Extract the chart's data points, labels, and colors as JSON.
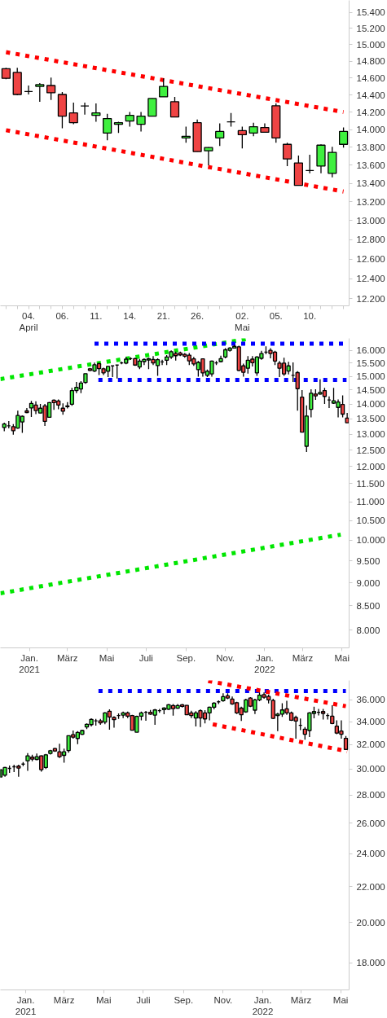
{
  "chart_data": [
    {
      "type": "candlestick",
      "log": true,
      "categories": [
        null,
        null,
        "04.\nApril",
        null,
        null,
        "06.",
        null,
        null,
        "11.",
        null,
        null,
        "14.",
        null,
        null,
        "21.",
        null,
        null,
        "26.",
        null,
        null,
        null,
        "02.\nMai",
        null,
        null,
        "05.",
        null,
        null,
        "10.",
        null,
        null,
        null
      ],
      "ohlc": [
        [
          14710,
          14720,
          14585,
          14595
        ],
        [
          14665,
          14720,
          14395,
          14405
        ],
        [
          14440,
          14510,
          14405,
          14440
        ],
        [
          14500,
          14540,
          14320,
          14520
        ],
        [
          14510,
          14605,
          14340,
          14425
        ],
        [
          14405,
          14433,
          14014,
          14153
        ],
        [
          14190,
          14310,
          14060,
          14078
        ],
        [
          14270,
          14310,
          14170,
          14270
        ],
        [
          14162,
          14300,
          14088,
          14190
        ],
        [
          13960,
          14180,
          13878,
          14125
        ],
        [
          14060,
          14088,
          13960,
          14078
        ],
        [
          14097,
          14200,
          14032,
          14162
        ],
        [
          14060,
          14200,
          13978,
          14153
        ],
        [
          14153,
          14360,
          14150,
          14358
        ],
        [
          14377,
          14595,
          14375,
          14500
        ],
        [
          14320,
          14377,
          14140,
          14144
        ],
        [
          13905,
          14032,
          13850,
          13923
        ],
        [
          14078,
          14115,
          13751,
          13751
        ],
        [
          13760,
          13800,
          13598,
          13796
        ],
        [
          13905,
          14069,
          13814,
          13978
        ],
        [
          14088,
          14190,
          14032,
          14088
        ],
        [
          13987,
          14032,
          13787,
          13941
        ],
        [
          13960,
          14078,
          13923,
          14032
        ],
        [
          14023,
          14069,
          13965,
          13969
        ],
        [
          14273,
          14300,
          13850,
          13905
        ],
        [
          13832,
          13850,
          13590,
          13669
        ],
        [
          13625,
          13706,
          13378,
          13378
        ],
        [
          13540,
          13715,
          13510,
          13540
        ],
        [
          13590,
          13832,
          13510,
          13823
        ],
        [
          13510,
          13805,
          13466,
          13742
        ],
        [
          13832,
          14023,
          13796,
          13978
        ]
      ],
      "colors": [
        "#ef4444",
        "#ef4444",
        "#000000",
        "#3ff03f",
        "#ef4444",
        "#ef4444",
        "#ef4444",
        "#000000",
        "#3ff03f",
        "#3ff03f",
        "#3ff03f",
        "#3ff03f",
        "#3ff03f",
        "#3ff03f",
        "#3ff03f",
        "#ef4444",
        "#3ff03f",
        "#ef4444",
        "#3ff03f",
        "#3ff03f",
        "#000000",
        "#ef4444",
        "#3ff03f",
        "#ef4444",
        "#ef4444",
        "#ef4444",
        "#ef4444",
        "#000000",
        "#3ff03f",
        "#3ff03f",
        "#3ff03f"
      ],
      "series": [
        {
          "type": "line",
          "color": "#ff0000",
          "line_style": "dotted",
          "values": [
            14909,
            null,
            null,
            null,
            null,
            null,
            null,
            null,
            null,
            null,
            null,
            null,
            null,
            null,
            null,
            null,
            null,
            null,
            null,
            null,
            null,
            null,
            null,
            null,
            null,
            null,
            null,
            null,
            null,
            null,
            14200
          ]
        },
        {
          "type": "line",
          "color": "#ff0000",
          "line_style": "dotted",
          "values": [
            13992,
            null,
            null,
            null,
            null,
            null,
            null,
            null,
            null,
            null,
            null,
            null,
            null,
            null,
            null,
            null,
            null,
            null,
            null,
            null,
            null,
            null,
            null,
            null,
            null,
            null,
            null,
            null,
            null,
            null,
            13311
          ]
        }
      ],
      "ylim": [
        12130,
        15550
      ],
      "yticks": [
        {
          "value": 12200,
          "label": "12.200"
        },
        {
          "value": 12400,
          "label": "12.400"
        },
        {
          "value": 12600,
          "label": "12.600"
        },
        {
          "value": 12800,
          "label": "12.800"
        },
        {
          "value": 13000,
          "label": "13.000"
        },
        {
          "value": 13200,
          "label": "13.200"
        },
        {
          "value": 13400,
          "label": "13.400"
        },
        {
          "value": 13600,
          "label": "13.600"
        },
        {
          "value": 13800,
          "label": "13.800"
        },
        {
          "value": 14000,
          "label": "14.000"
        },
        {
          "value": 14200,
          "label": "14.200"
        },
        {
          "value": 14400,
          "label": "14.400"
        },
        {
          "value": 14600,
          "label": "14.600"
        },
        {
          "value": 14800,
          "label": "14.800"
        },
        {
          "value": 15000,
          "label": "15.000"
        },
        {
          "value": 15200,
          "label": "15.200"
        },
        {
          "value": 15400,
          "label": "15.400"
        }
      ]
    },
    {
      "type": "candlestick",
      "log": true,
      "x": [
        "2020-11-23",
        "2020-11-30",
        "2020-12-07",
        "2020-12-14",
        "2020-12-21",
        "2020-12-28",
        "2021-01-04",
        "2021-01-11",
        "2021-01-18",
        "2021-01-25",
        "2021-02-01",
        "2021-02-08",
        "2021-02-15",
        "2021-02-22",
        "2021-03-01",
        "2021-03-08",
        "2021-03-15",
        "2021-03-22",
        "2021-03-29",
        "2021-04-05",
        "2021-04-12",
        "2021-04-19",
        "2021-04-26",
        "2021-05-03",
        "2021-05-10",
        "2021-05-17",
        "2021-05-24",
        "2021-05-31",
        "2021-06-07",
        "2021-06-14",
        "2021-06-21",
        "2021-06-28",
        "2021-07-05",
        "2021-07-12",
        "2021-07-19",
        "2021-07-26",
        "2021-08-02",
        "2021-08-09",
        "2021-08-16",
        "2021-08-23",
        "2021-08-30",
        "2021-09-06",
        "2021-09-13",
        "2021-09-20",
        "2021-09-27",
        "2021-10-04",
        "2021-10-11",
        "2021-10-18",
        "2021-10-25",
        "2021-11-01",
        "2021-11-08",
        "2021-11-15",
        "2021-11-22",
        "2021-11-29",
        "2021-12-06",
        "2021-12-13",
        "2021-12-20",
        "2021-12-27",
        "2022-01-03",
        "2022-01-10",
        "2022-01-17",
        "2022-01-24",
        "2022-01-31",
        "2022-02-07",
        "2022-02-14",
        "2022-02-21",
        "2022-02-28",
        "2022-03-07",
        "2022-03-14",
        "2022-03-21",
        "2022-03-28",
        "2022-04-04",
        "2022-04-11",
        "2022-04-18",
        "2022-04-25",
        "2022-05-02",
        "2022-05-09"
      ],
      "ohlc": [
        [
          13217,
          13375,
          13094,
          13330
        ],
        [
          13270,
          13428,
          13191,
          13270
        ],
        [
          13243,
          13330,
          12982,
          13112
        ],
        [
          13199,
          13781,
          13173,
          13617
        ],
        [
          13402,
          13617,
          13042,
          13590
        ],
        [
          13773,
          13872,
          13700,
          13718
        ],
        [
          13872,
          14114,
          13563,
          14030
        ],
        [
          13974,
          14105,
          13663,
          13781
        ],
        [
          13699,
          14011,
          13690,
          13863
        ],
        [
          13946,
          14011,
          13270,
          13420
        ],
        [
          13554,
          14077,
          13554,
          14058
        ],
        [
          14142,
          14170,
          13808,
          14058
        ],
        [
          14114,
          14170,
          13827,
          13974
        ],
        [
          13863,
          14030,
          13644,
          13762
        ],
        [
          13918,
          14077,
          13854,
          13946
        ],
        [
          14002,
          14580,
          13946,
          14484
        ],
        [
          14484,
          14795,
          14388,
          14600
        ],
        [
          14542,
          14824,
          14388,
          14754
        ],
        [
          14775,
          15105,
          14725,
          15102
        ],
        [
          15284,
          15315,
          15193,
          15223
        ],
        [
          15202,
          15519,
          15163,
          15437
        ],
        [
          15478,
          15519,
          15051,
          15293
        ],
        [
          15284,
          15325,
          15051,
          15132
        ],
        [
          15193,
          15396,
          14973,
          15376
        ],
        [
          15396,
          15396,
          14973,
          15396
        ],
        [
          15427,
          15427,
          14923,
          15427
        ],
        [
          15508,
          15560,
          15457,
          15508
        ],
        [
          15498,
          15739,
          15457,
          15654
        ],
        [
          15675,
          15726,
          15623,
          15675
        ],
        [
          15675,
          15706,
          15396,
          15427
        ],
        [
          15354,
          15664,
          15274,
          15582
        ],
        [
          15560,
          15685,
          15427,
          15644
        ],
        [
          15623,
          15706,
          15274,
          15675
        ],
        [
          15644,
          15769,
          15427,
          15508
        ],
        [
          15407,
          15685,
          15022,
          15633
        ],
        [
          15550,
          15633,
          15427,
          15550
        ],
        [
          15612,
          15811,
          15427,
          15739
        ],
        [
          15739,
          16000,
          15664,
          15946
        ],
        [
          15873,
          15946,
          15602,
          15789
        ],
        [
          15894,
          15946,
          15769,
          15820
        ],
        [
          15841,
          15894,
          15706,
          15769
        ],
        [
          15810,
          15894,
          15427,
          15585
        ],
        [
          15664,
          15739,
          15396,
          15470
        ],
        [
          15254,
          15582,
          14991,
          15529
        ],
        [
          15664,
          15685,
          14991,
          15132
        ],
        [
          15042,
          15254,
          14973,
          15193
        ],
        [
          15093,
          15602,
          14991,
          15582
        ],
        [
          15508,
          15582,
          15427,
          15508
        ],
        [
          15560,
          15789,
          15529,
          15675
        ],
        [
          15739,
          16087,
          15685,
          16021
        ],
        [
          16000,
          16129,
          15946,
          16087
        ],
        [
          16087,
          16215,
          16087,
          16160
        ],
        [
          16138,
          16182,
          15193,
          15223
        ],
        [
          15396,
          15478,
          14991,
          15152
        ],
        [
          15305,
          15769,
          15102,
          15612
        ],
        [
          15654,
          15769,
          15376,
          15519
        ],
        [
          15132,
          15769,
          15022,
          15739
        ],
        [
          15685,
          15978,
          15633,
          15873
        ],
        [
          15926,
          16160,
          15841,
          15926
        ],
        [
          16000,
          16087,
          15685,
          15873
        ],
        [
          15926,
          15978,
          15427,
          15581
        ],
        [
          15498,
          15582,
          14973,
          15305
        ],
        [
          15498,
          15706,
          15022,
          15092
        ],
        [
          15202,
          15550,
          15072,
          15396
        ],
        [
          15042,
          15529,
          14795,
          15042
        ],
        [
          15142,
          15193,
          13781,
          14551
        ],
        [
          14247,
          14503,
          13068,
          13068
        ],
        [
          12617,
          13965,
          12437,
          13599
        ],
        [
          13826,
          14532,
          13554,
          14388
        ],
        [
          14360,
          14532,
          14150,
          14293
        ],
        [
          14360,
          14893,
          14340,
          14417
        ],
        [
          14484,
          14580,
          14011,
          14275
        ],
        [
          14150,
          14275,
          13872,
          14150
        ],
        [
          14040,
          14580,
          14011,
          14123
        ],
        [
          13891,
          14170,
          13554,
          14077
        ],
        [
          13993,
          14312,
          13554,
          13663
        ],
        [
          13528,
          13702,
          13375,
          13375
        ]
      ],
      "colors": [
        "#3ff03f",
        "#000000",
        "#ef4444",
        "#3ff03f",
        "#3ff03f",
        "#ef4444",
        "#3ff03f",
        "#ef4444",
        "#3ff03f",
        "#ef4444",
        "#3ff03f",
        "#ef4444",
        "#ef4444",
        "#ef4444",
        "#3ff03f",
        "#3ff03f",
        "#3ff03f",
        "#3ff03f",
        "#3ff03f",
        "#ef4444",
        "#3ff03f",
        "#ef4444",
        "#ef4444",
        "#3ff03f",
        "#000000",
        "#000000",
        "#000000",
        "#3ff03f",
        "#000000",
        "#ef4444",
        "#3ff03f",
        "#3ff03f",
        "#3ff03f",
        "#ef4444",
        "#3ff03f",
        "#000000",
        "#3ff03f",
        "#3ff03f",
        "#ef4444",
        "#ef4444",
        "#ef4444",
        "#ef4444",
        "#ef4444",
        "#3ff03f",
        "#ef4444",
        "#3ff03f",
        "#3ff03f",
        "#000000",
        "#3ff03f",
        "#3ff03f",
        "#3ff03f",
        "#3ff03f",
        "#ef4444",
        "#ef4444",
        "#3ff03f",
        "#ef4444",
        "#3ff03f",
        "#3ff03f",
        "#000000",
        "#ef4444",
        "#ef4444",
        "#ef4444",
        "#ef4444",
        "#3ff03f",
        "#000000",
        "#ef4444",
        "#ef4444",
        "#3ff03f",
        "#3ff03f",
        "#ef4444",
        "#3ff03f",
        "#ef4444",
        "#000000",
        "#3ff03f",
        "#3ff03f",
        "#ef4444",
        "#ef4444"
      ],
      "series": [
        {
          "type": "line",
          "color": "#00e600",
          "line_style": "dotted",
          "x": [
            "2020-11-17",
            "2021-12-11"
          ],
          "values": [
            14902,
            16480
          ]
        },
        {
          "type": "line",
          "color": "#00e600",
          "line_style": "dotted",
          "x": [
            "2020-11-17",
            "2022-04-29"
          ],
          "values": [
            8768,
            10139
          ]
        },
        {
          "type": "line",
          "color": "#0000ff",
          "line_style": "dotted",
          "x": [
            "2021-04-12",
            "2022-05-08"
          ],
          "values": [
            16266,
            16266
          ]
        },
        {
          "type": "line",
          "color": "#0000ff",
          "line_style": "dotted",
          "x": [
            "2021-04-18",
            "2022-05-08"
          ],
          "values": [
            14872,
            14872
          ]
        }
      ],
      "xlim": [
        "2020-11-17",
        "2022-05-12"
      ],
      "xticks": [
        {
          "value": "2021-01-01",
          "label": "Jan.\n2021"
        },
        {
          "value": "2021-03-01",
          "label": "März"
        },
        {
          "value": "2021-05-01",
          "label": "Mai"
        },
        {
          "value": "2021-07-01",
          "label": "Juli"
        },
        {
          "value": "2021-09-01",
          "label": "Sep."
        },
        {
          "value": "2021-11-01",
          "label": "Nov."
        },
        {
          "value": "2022-01-01",
          "label": "Jan.\n2022"
        },
        {
          "value": "2022-03-01",
          "label": "März"
        },
        {
          "value": "2022-05-01",
          "label": "Mai"
        }
      ],
      "ylim": [
        7660,
        16480
      ],
      "yticks": [
        {
          "value": 8000,
          "label": "8.000"
        },
        {
          "value": 8500,
          "label": "8.500"
        },
        {
          "value": 9000,
          "label": "9.000"
        },
        {
          "value": 9500,
          "label": "9.500"
        },
        {
          "value": 10000,
          "label": "10.000"
        },
        {
          "value": 10500,
          "label": "10.500"
        },
        {
          "value": 11000,
          "label": "11.000"
        },
        {
          "value": 11500,
          "label": "11.500"
        },
        {
          "value": 12000,
          "label": "12.000"
        },
        {
          "value": 12500,
          "label": "12.500"
        },
        {
          "value": 13000,
          "label": "13.000"
        },
        {
          "value": 13500,
          "label": "13.500"
        },
        {
          "value": 14000,
          "label": "14.000"
        },
        {
          "value": 14500,
          "label": "14.500"
        },
        {
          "value": 15000,
          "label": "15.000"
        },
        {
          "value": 15500,
          "label": "15.500"
        },
        {
          "value": 16000,
          "label": "16.000"
        }
      ]
    },
    {
      "type": "candlestick",
      "log": true,
      "x": [
        "2020-11-23",
        "2020-11-30",
        "2020-12-07",
        "2020-12-14",
        "2020-12-21",
        "2020-12-28",
        "2021-01-04",
        "2021-01-11",
        "2021-01-18",
        "2021-01-25",
        "2021-02-01",
        "2021-02-08",
        "2021-02-15",
        "2021-02-22",
        "2021-03-01",
        "2021-03-08",
        "2021-03-15",
        "2021-03-22",
        "2021-03-29",
        "2021-04-05",
        "2021-04-12",
        "2021-04-19",
        "2021-04-26",
        "2021-05-03",
        "2021-05-10",
        "2021-05-17",
        "2021-05-24",
        "2021-05-31",
        "2021-06-07",
        "2021-06-14",
        "2021-06-21",
        "2021-06-28",
        "2021-07-05",
        "2021-07-12",
        "2021-07-19",
        "2021-07-26",
        "2021-08-02",
        "2021-08-09",
        "2021-08-16",
        "2021-08-23",
        "2021-08-30",
        "2021-09-06",
        "2021-09-13",
        "2021-09-20",
        "2021-09-27",
        "2021-10-04",
        "2021-10-11",
        "2021-10-18",
        "2021-10-25",
        "2021-11-01",
        "2021-11-08",
        "2021-11-15",
        "2021-11-22",
        "2021-11-29",
        "2021-12-06",
        "2021-12-13",
        "2021-12-20",
        "2021-12-27",
        "2022-01-03",
        "2022-01-10",
        "2022-01-17",
        "2022-01-24",
        "2022-01-31",
        "2022-02-07",
        "2022-02-14",
        "2022-02-21",
        "2022-02-28",
        "2022-03-07",
        "2022-03-14",
        "2022-03-21",
        "2022-03-28",
        "2022-04-04",
        "2022-04-11",
        "2022-04-18",
        "2022-04-25",
        "2022-05-02",
        "2022-05-09"
      ],
      "ohlc": [
        [
          29378,
          29990,
          29330,
          29951
        ],
        [
          29516,
          30160,
          29400,
          30117
        ],
        [
          30050,
          30270,
          29700,
          30050
        ],
        [
          30180,
          30340,
          29760,
          30180
        ],
        [
          30227,
          30340,
          29400,
          30080
        ],
        [
          30390,
          30550,
          30230,
          30390
        ],
        [
          30660,
          31280,
          29860,
          31060
        ],
        [
          30950,
          31150,
          30620,
          30800
        ],
        [
          30770,
          31260,
          30710,
          30990
        ],
        [
          31060,
          31100,
          29800,
          29950
        ],
        [
          30120,
          31213,
          30010,
          31150
        ],
        [
          31260,
          31549,
          31170,
          31480
        ],
        [
          31660,
          31730,
          31390,
          31460
        ],
        [
          31390,
          32070,
          30880,
          30990
        ],
        [
          31100,
          31660,
          30510,
          31390
        ],
        [
          31500,
          32760,
          31320,
          32760
        ],
        [
          32850,
          33210,
          32510,
          32630
        ],
        [
          32520,
          33160,
          32040,
          33040
        ],
        [
          32880,
          33280,
          32810,
          33210
        ],
        [
          33520,
          33830,
          33330,
          33760
        ],
        [
          33730,
          34290,
          33570,
          34200
        ],
        [
          34070,
          34240,
          33640,
          34070
        ],
        [
          34070,
          34240,
          33710,
          33880
        ],
        [
          33950,
          34860,
          33760,
          34790
        ],
        [
          34940,
          35110,
          33280,
          34420
        ],
        [
          34370,
          34490,
          33450,
          34170
        ],
        [
          34540,
          34740,
          34250,
          34540
        ],
        [
          34590,
          34910,
          34320,
          34790
        ],
        [
          34790,
          34910,
          34320,
          34490
        ],
        [
          34540,
          34610,
          33230,
          33230
        ],
        [
          33060,
          34540,
          33060,
          34470
        ],
        [
          34490,
          34910,
          34120,
          34790
        ],
        [
          34850,
          34970,
          34070,
          34850
        ],
        [
          34850,
          35060,
          34610,
          34670
        ],
        [
          34590,
          35160,
          33710,
          35060
        ],
        [
          34990,
          35160,
          34790,
          34990
        ],
        [
          35090,
          35310,
          34660,
          35230
        ],
        [
          35130,
          35610,
          35060,
          35550
        ],
        [
          35470,
          35610,
          34540,
          35180
        ],
        [
          35220,
          35610,
          35180,
          35470
        ],
        [
          35540,
          35610,
          35290,
          35390
        ],
        [
          35490,
          35520,
          34590,
          34620
        ],
        [
          34790,
          34990,
          34320,
          34540
        ],
        [
          34320,
          34940,
          33570,
          34790
        ],
        [
          34990,
          35110,
          33520,
          34320
        ],
        [
          34790,
          35040,
          33830,
          34240
        ],
        [
          34790,
          35360,
          34120,
          35310
        ],
        [
          35310,
          35790,
          35110,
          35690
        ],
        [
          35820,
          35950,
          35610,
          35820
        ],
        [
          35920,
          36645,
          35820,
          36310
        ],
        [
          36390,
          36645,
          36080,
          36180
        ],
        [
          36080,
          36330,
          35540,
          35620
        ],
        [
          35740,
          35820,
          34690,
          34790
        ],
        [
          35230,
          35360,
          34050,
          34620
        ],
        [
          34880,
          36120,
          34790,
          36000
        ],
        [
          36180,
          36260,
          35320,
          35410
        ],
        [
          35040,
          36120,
          34690,
          36000
        ],
        [
          36000,
          36720,
          35870,
          36460
        ],
        [
          36510,
          36720,
          36120,
          36250
        ],
        [
          36330,
          36510,
          35660,
          36000
        ],
        [
          35950,
          36120,
          34240,
          34290
        ],
        [
          34540,
          34790,
          33160,
          34670
        ],
        [
          34670,
          35690,
          34420,
          35060
        ],
        [
          35160,
          35920,
          34620,
          34790
        ],
        [
          34790,
          34910,
          34050,
          34120
        ],
        [
          34370,
          34540,
          32510,
          34050
        ],
        [
          33660,
          34270,
          33240,
          33660
        ],
        [
          33330,
          33520,
          32420,
          32880
        ],
        [
          33210,
          34850,
          32640,
          34790
        ],
        [
          34740,
          35360,
          34290,
          34910
        ],
        [
          34850,
          35160,
          34560,
          34850
        ],
        [
          34910,
          35160,
          34180,
          34740
        ],
        [
          34540,
          34740,
          34180,
          34540
        ],
        [
          34490,
          35490,
          33760,
          33830
        ],
        [
          33590,
          34120,
          32880,
          32980
        ],
        [
          33160,
          34120,
          32510,
          32880
        ],
        [
          32530,
          32730,
          31590,
          31590
        ]
      ],
      "colors": [
        "#3ff03f",
        "#3ff03f",
        "#000000",
        "#000000",
        "#ef4444",
        "#000000",
        "#3ff03f",
        "#ef4444",
        "#3ff03f",
        "#ef4444",
        "#3ff03f",
        "#3ff03f",
        "#ef4444",
        "#ef4444",
        "#3ff03f",
        "#3ff03f",
        "#ef4444",
        "#3ff03f",
        "#3ff03f",
        "#3ff03f",
        "#3ff03f",
        "#000000",
        "#ef4444",
        "#3ff03f",
        "#ef4444",
        "#ef4444",
        "#000000",
        "#3ff03f",
        "#ef4444",
        "#ef4444",
        "#3ff03f",
        "#3ff03f",
        "#000000",
        "#ef4444",
        "#3ff03f",
        "#000000",
        "#3ff03f",
        "#3ff03f",
        "#ef4444",
        "#3ff03f",
        "#ef4444",
        "#ef4444",
        "#ef4444",
        "#3ff03f",
        "#ef4444",
        "#ef4444",
        "#3ff03f",
        "#3ff03f",
        "#000000",
        "#3ff03f",
        "#ef4444",
        "#ef4444",
        "#ef4444",
        "#ef4444",
        "#3ff03f",
        "#ef4444",
        "#3ff03f",
        "#3ff03f",
        "#ef4444",
        "#ef4444",
        "#ef4444",
        "#3ff03f",
        "#3ff03f",
        "#ef4444",
        "#ef4444",
        "#ef4444",
        "#000000",
        "#ef4444",
        "#3ff03f",
        "#3ff03f",
        "#000000",
        "#ef4444",
        "#000000",
        "#ef4444",
        "#ef4444",
        "#ef4444",
        "#ef4444"
      ],
      "series": [
        {
          "type": "line",
          "color": "#0000ff",
          "line_style": "dotted",
          "x": [
            "2021-04-23",
            "2022-05-09"
          ],
          "values": [
            36858,
            36858
          ]
        },
        {
          "type": "line",
          "color": "#ff0000",
          "line_style": "dotted",
          "x": [
            "2021-10-09",
            "2022-05-09"
          ],
          "values": [
            37840,
            35410
          ]
        },
        {
          "type": "line",
          "color": "#ff0000",
          "line_style": "dotted",
          "x": [
            "2021-10-16",
            "2022-05-11"
          ],
          "values": [
            33760,
            31440
          ]
        }
      ],
      "xlim": [
        "2020-11-23",
        "2022-05-14"
      ],
      "xticks": [
        {
          "value": "2021-01-01",
          "label": "Jan.\n2021"
        },
        {
          "value": "2021-03-01",
          "label": "März"
        },
        {
          "value": "2021-05-01",
          "label": "Mai"
        },
        {
          "value": "2021-07-01",
          "label": "Juli"
        },
        {
          "value": "2021-09-01",
          "label": "Sep."
        },
        {
          "value": "2021-11-01",
          "label": "Nov."
        },
        {
          "value": "2022-01-01",
          "label": "Jan.\n2022"
        },
        {
          "value": "2022-03-01",
          "label": "März"
        },
        {
          "value": "2022-05-01",
          "label": "Mai"
        }
      ],
      "ylim": [
        16750,
        37900
      ],
      "yticks": [
        {
          "value": 18000,
          "label": "18.000"
        },
        {
          "value": 20000,
          "label": "20.000"
        },
        {
          "value": 22000,
          "label": "22.000"
        },
        {
          "value": 24000,
          "label": "24.000"
        },
        {
          "value": 26000,
          "label": "26.000"
        },
        {
          "value": 28000,
          "label": "28.000"
        },
        {
          "value": 30000,
          "label": "30.000"
        },
        {
          "value": 32000,
          "label": "32.000"
        },
        {
          "value": 34000,
          "label": "34.000"
        },
        {
          "value": 36000,
          "label": "36.000"
        }
      ]
    }
  ]
}
